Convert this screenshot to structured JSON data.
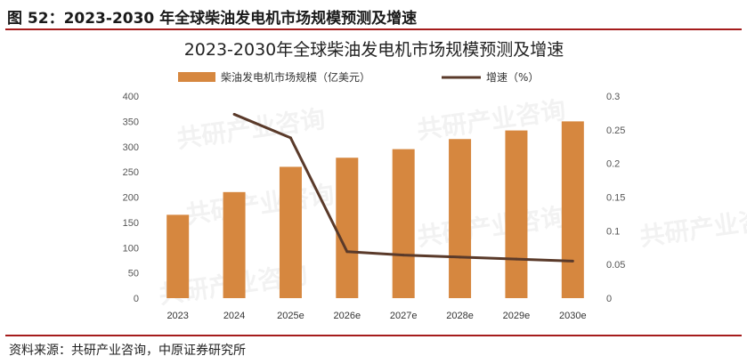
{
  "caption": "图 52：2023-2030 年全球柴油发电机市场规模预测及增速",
  "source": "资料来源：共研产业咨询，中原证券研究所",
  "watermark": "共研产业咨询",
  "colors": {
    "bar": "#D6873F",
    "line": "#5A3A2A",
    "rule": "#A51C1C"
  },
  "chart_data": {
    "type": "bar",
    "title": "2023-2030年全球柴油发电机市场规模预测及增速",
    "categories": [
      "2023",
      "2024",
      "2025e",
      "2026e",
      "2027e",
      "2028e",
      "2029e",
      "2030e"
    ],
    "series": [
      {
        "name": "柴油发电机市场规模（亿美元）",
        "type": "bar",
        "axis": "left",
        "values": [
          165,
          210,
          260,
          278,
          295,
          315,
          332,
          350
        ]
      },
      {
        "name": "增速（%）",
        "type": "line",
        "axis": "right",
        "values": [
          null,
          0.273,
          0.238,
          0.069,
          0.064,
          0.061,
          0.058,
          0.055
        ]
      }
    ],
    "ylim_left": [
      0,
      400
    ],
    "yticks_left": [
      "0",
      "50",
      "100",
      "150",
      "200",
      "250",
      "300",
      "350",
      "400"
    ],
    "ylim_right": [
      0,
      0.3
    ],
    "yticks_right": [
      "0",
      "0.05",
      "0.1",
      "0.15",
      "0.2",
      "0.25",
      "0.3"
    ],
    "legend": "top",
    "grid": false
  }
}
